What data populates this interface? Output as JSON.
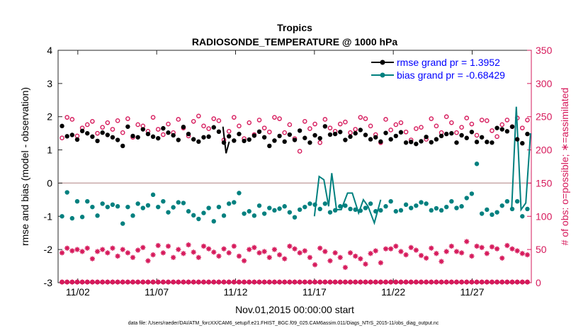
{
  "chart_data": {
    "type": "line",
    "title": "Tropics",
    "subtitle": "RADIOSONDE_TEMPERATURE @ 1000 hPa",
    "xlabel": "Nov.01,2015 00:00:00 start",
    "ylabel": "rmse and bias (model - observation)",
    "y2label": "# of obs: o=possible; ∗=assimilated",
    "footnote": "data file: /Users/raeder/DAI/ATM_forcXX/CAM6_setup/f.e21.FHIST_BGC.f09_025.CAM6assim.011/Diags_NTrS_2015-11/obs_diag_output.nc",
    "xlim": [
      0.75,
      30.75
    ],
    "ylim": [
      -3,
      4
    ],
    "y2lim": [
      0,
      350
    ],
    "x_ticks": [
      2,
      7,
      12,
      17,
      22,
      27
    ],
    "x_tick_labels": [
      "11/02",
      "11/07",
      "11/12",
      "11/17",
      "11/22",
      "11/27"
    ],
    "y_ticks": [
      -3,
      -2,
      -1,
      0,
      1,
      2,
      3,
      4
    ],
    "y2_ticks": [
      0,
      50,
      100,
      150,
      200,
      250,
      300,
      350
    ],
    "legend_position": "top-right",
    "colors": {
      "rmse": "#000000",
      "bias": "#00807f",
      "obs": "#d6195b",
      "zero_line": "#c8a8a8",
      "legend_text": "#0000ff"
    },
    "series": [
      {
        "name": "rmse grand pr = 1.3952",
        "key": "rmse",
        "axis": "left",
        "values": [
          1.72,
          1.41,
          1.45,
          1.31,
          1.57,
          1.5,
          1.4,
          1.27,
          1.52,
          1.45,
          1.38,
          1.3,
          1.12,
          1.7,
          1.42,
          1.38,
          1.62,
          1.48,
          1.4,
          1.35,
          1.65,
          1.52,
          1.44,
          1.3,
          1.69,
          1.48,
          1.32,
          1.25,
          1.38,
          1.4,
          1.68,
          1.55,
          1.22,
          1.41,
          1.28,
          1.48,
          1.27,
          1.31,
          1.43,
          1.55,
          1.38,
          1.12,
          1.28,
          1.42,
          1.25,
          1.46,
          1.3,
          1.58,
          1.36,
          1.22,
          1.44,
          1.35,
          1.71,
          1.46,
          1.48,
          1.54,
          1.3,
          1.4,
          1.5,
          1.6,
          1.45,
          1.32,
          1.38,
          1.25,
          1.51,
          1.32,
          1.42,
          1.53,
          1.22,
          1.24,
          1.18,
          1.26,
          1.39,
          1.23,
          1.32,
          1.42,
          1.48,
          1.5,
          1.22,
          1.44,
          1.36,
          1.54,
          1.24,
          1.38,
          1.24,
          1.22,
          1.66,
          1.62,
          1.56,
          1.7,
          1.32,
          1.2,
          1.48
        ]
      },
      {
        "name": "bias grand pr = -0.68429",
        "key": "bias",
        "axis": "left",
        "values": [
          -1.0,
          -0.28,
          -1.06,
          -0.55,
          -1.02,
          -0.55,
          -0.72,
          -0.98,
          -0.62,
          -0.72,
          -0.65,
          -0.7,
          -1.22,
          -0.72,
          -0.98,
          -0.62,
          -0.75,
          -0.67,
          -0.35,
          -0.72,
          -0.55,
          -0.88,
          -0.73,
          -0.58,
          -0.6,
          -0.85,
          -0.97,
          -1.08,
          -0.9,
          -0.75,
          -1.15,
          -0.72,
          -0.98,
          -0.62,
          -0.58,
          -0.3,
          -0.92,
          -0.85,
          -0.98,
          -0.68,
          -0.92,
          -0.75,
          -0.82,
          -0.77,
          -0.7,
          -0.88,
          -1.03,
          -0.8,
          -0.72,
          -0.62,
          -0.65,
          -0.78,
          -0.62,
          -0.88,
          -0.82,
          -0.7,
          -0.68,
          -0.78,
          -0.8,
          -0.83,
          -0.75,
          -0.62,
          -0.85,
          -0.82,
          -0.7,
          -0.55,
          -0.85,
          -0.82,
          -0.65,
          -0.75,
          -0.68,
          -0.58,
          -0.62,
          -0.82,
          -0.76,
          -0.82,
          -0.72,
          -0.55,
          -0.75,
          -0.7,
          -0.45,
          -0.32,
          0.58,
          -0.92,
          -0.8,
          -0.95,
          -0.88,
          -0.68,
          -0.55,
          -0.78,
          -0.55,
          -1.0,
          -0.78
        ]
      },
      {
        "name": "possible",
        "key": "possible",
        "axis": "right",
        "values": [
          218,
          249,
          246,
          221,
          233,
          238,
          243,
          225,
          234,
          241,
          231,
          244,
          226,
          247,
          219,
          238,
          236,
          228,
          249,
          231,
          223,
          239,
          226,
          246,
          233,
          221,
          243,
          251,
          236,
          232,
          247,
          244,
          215,
          228,
          249,
          236,
          217,
          241,
          223,
          245,
          233,
          227,
          249,
          247,
          226,
          238,
          217,
          198,
          243,
          232,
          239,
          211,
          246,
          233,
          228,
          239,
          242,
          226,
          231,
          249,
          247,
          236,
          223,
          211,
          246,
          230,
          238,
          241,
          227,
          215,
          232,
          234,
          216,
          247,
          236,
          226,
          250,
          241,
          226,
          234,
          248,
          239,
          222,
          245,
          244,
          229,
          220,
          238,
          245,
          235,
          248,
          233,
          245
        ]
      },
      {
        "name": "assimilated",
        "key": "assimilated",
        "axis": "right",
        "values": [
          45,
          52,
          48,
          50,
          47,
          52,
          36,
          47,
          50,
          45,
          52,
          40,
          50,
          45,
          38,
          49,
          53,
          33,
          42,
          56,
          45,
          55,
          38,
          50,
          44,
          57,
          46,
          38,
          55,
          51,
          46,
          40,
          51,
          45,
          55,
          40,
          33,
          50,
          53,
          45,
          47,
          38,
          50,
          42,
          36,
          55,
          51,
          45,
          48,
          38,
          27,
          52,
          47,
          33,
          45,
          38,
          23,
          45,
          40,
          36,
          28,
          44,
          48,
          30,
          51,
          51,
          55,
          47,
          42,
          53,
          49,
          41,
          37,
          52,
          44,
          32,
          47,
          55,
          47,
          45,
          62,
          40,
          55,
          53,
          44,
          54,
          51,
          37,
          56,
          51,
          48,
          44,
          42
        ]
      },
      {
        "name": "",
        "key": "assimilated_low",
        "axis": "right",
        "values": [
          1
        ]
      }
    ]
  }
}
